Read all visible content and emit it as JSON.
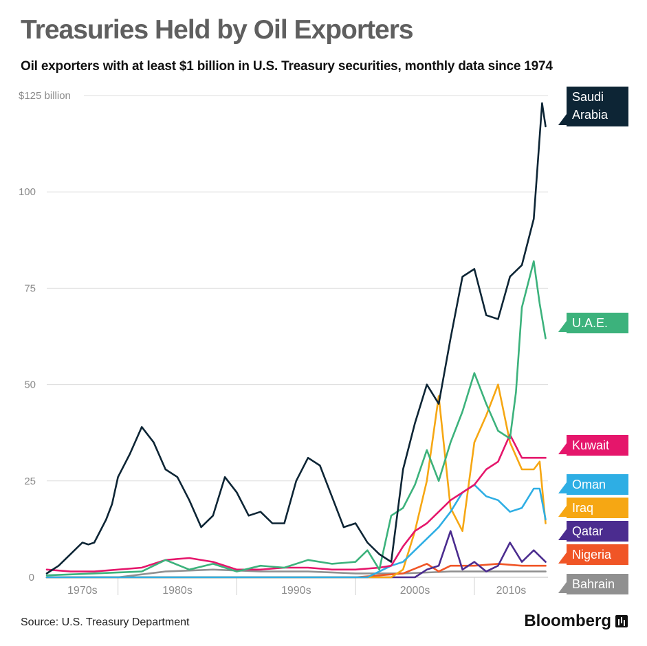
{
  "title": "Treasuries Held by Oil Exporters",
  "subtitle": "Oil exporters with at least $1 billion in U.S. Treasury securities,  monthly data since 1974",
  "source": "Source: U.S. Treasury Department",
  "brand": "Bloomberg",
  "chart_data": {
    "type": "line",
    "title": "Treasuries Held by Oil Exporters",
    "subtitle": "Oil exporters with at least $1 billion in U.S. Treasury securities,  monthly data since 1974",
    "x_range": [
      1974,
      2016.2
    ],
    "ylim": [
      0,
      125
    ],
    "y_ticks": [
      {
        "value": 0,
        "label": "0"
      },
      {
        "value": 25,
        "label": "25"
      },
      {
        "value": 50,
        "label": "50"
      },
      {
        "value": 75,
        "label": "75"
      },
      {
        "value": 100,
        "label": "100"
      },
      {
        "value": 125,
        "label": "$125 billion"
      }
    ],
    "x_decades": [
      {
        "label": "1970s",
        "start": 1974,
        "end": 1980
      },
      {
        "label": "1980s",
        "start": 1980,
        "end": 1990
      },
      {
        "label": "1990s",
        "start": 1990,
        "end": 2000
      },
      {
        "label": "2000s",
        "start": 2000,
        "end": 2010
      },
      {
        "label": "2010s",
        "start": 2010,
        "end": 2016.2
      }
    ],
    "grid": true,
    "legend": "right",
    "series": [
      {
        "name": "Saudi Arabia",
        "color": "#0d2535",
        "label_lines": [
          "Saudi",
          "Arabia"
        ],
        "x": [
          1974,
          1975,
          1976,
          1977,
          1977.5,
          1978,
          1979,
          1979.5,
          1980,
          1981,
          1982,
          1983,
          1984,
          1985,
          1986,
          1987,
          1988,
          1989,
          1990,
          1991,
          1992,
          1993,
          1994,
          1995,
          1996,
          1997,
          1998,
          1999,
          2000,
          2001,
          2002,
          2003,
          2004,
          2005,
          2006,
          2007,
          2008,
          2009,
          2010,
          2011,
          2012,
          2013,
          2014,
          2015,
          2015.7,
          2016
        ],
        "y": [
          1,
          3,
          6,
          9,
          8.5,
          9,
          15,
          19,
          26,
          32,
          39,
          35,
          28,
          26,
          20,
          13,
          16,
          26,
          22,
          16,
          17,
          14,
          14,
          25,
          31,
          29,
          21,
          13,
          14,
          9,
          6,
          4,
          28,
          40,
          50,
          45,
          62,
          78,
          80,
          68,
          67,
          78,
          81,
          93,
          123,
          117
        ]
      },
      {
        "name": "U.A.E.",
        "color": "#3cb27c",
        "label_lines": [
          "U.A.E."
        ],
        "x": [
          1974,
          1978,
          1982,
          1984,
          1986,
          1988,
          1990,
          1992,
          1994,
          1996,
          1998,
          2000,
          2001,
          2002,
          2003,
          2004,
          2005,
          2006,
          2007,
          2008,
          2009,
          2010,
          2011,
          2012,
          2013,
          2013.5,
          2014,
          2015,
          2015.5,
          2016
        ],
        "y": [
          0.5,
          1,
          1.5,
          4.5,
          2,
          3.5,
          1.5,
          3,
          2.5,
          4.5,
          3.5,
          4,
          7,
          2,
          16,
          18,
          24,
          33,
          25,
          35,
          43,
          53,
          45,
          38,
          36,
          48,
          70,
          82,
          71,
          62
        ]
      },
      {
        "name": "Kuwait",
        "color": "#e5166b",
        "label_lines": [
          "Kuwait"
        ],
        "x": [
          1974,
          1976,
          1978,
          1980,
          1982,
          1984,
          1986,
          1988,
          1990,
          1992,
          1994,
          1996,
          1998,
          2000,
          2002,
          2003,
          2004,
          2005,
          2006,
          2007,
          2008,
          2009,
          2010,
          2011,
          2012,
          2013,
          2014,
          2015,
          2016
        ],
        "y": [
          2,
          1.5,
          1.5,
          2,
          2.5,
          4.5,
          5,
          4,
          2,
          2,
          2.5,
          2.5,
          2,
          2,
          2.5,
          3,
          8,
          12,
          14,
          17,
          20,
          22,
          24,
          28,
          30,
          37,
          31,
          31,
          31
        ]
      },
      {
        "name": "Oman",
        "color": "#2eaee4",
        "label_lines": [
          "Oman"
        ],
        "x": [
          1974,
          2001,
          2002,
          2003,
          2004,
          2005,
          2006,
          2007,
          2008,
          2009,
          2010,
          2011,
          2012,
          2013,
          2014,
          2015,
          2015.5,
          2016
        ],
        "y": [
          0,
          0,
          1.5,
          3,
          4,
          7,
          10,
          13,
          17,
          22,
          24,
          21,
          20,
          17,
          18,
          23,
          23,
          15
        ]
      },
      {
        "name": "Iraq",
        "color": "#f6a713",
        "label_lines": [
          "Iraq"
        ],
        "x": [
          1974,
          2003,
          2004,
          2005,
          2006,
          2007,
          2008,
          2009,
          2010,
          2011,
          2012,
          2013,
          2014,
          2015,
          2015.5,
          2016
        ],
        "y": [
          0,
          0,
          2,
          12,
          25,
          47,
          18,
          12,
          35,
          42,
          50,
          35,
          28,
          28,
          30,
          14
        ]
      },
      {
        "name": "Qatar",
        "color": "#4b2c8f",
        "label_lines": [
          "Qatar"
        ],
        "x": [
          1974,
          2005,
          2006,
          2007,
          2008,
          2009,
          2010,
          2011,
          2012,
          2013,
          2014,
          2015,
          2016
        ],
        "y": [
          0,
          0,
          2,
          3,
          12,
          2,
          4,
          1.5,
          3,
          9,
          4,
          7,
          4
        ]
      },
      {
        "name": "Nigeria",
        "color": "#f05526",
        "label_lines": [
          "Nigeria"
        ],
        "x": [
          1974,
          1990,
          2000,
          2004,
          2006,
          2007,
          2008,
          2010,
          2012,
          2014,
          2016
        ],
        "y": [
          0,
          0,
          0,
          1,
          3.5,
          1.5,
          3,
          3,
          3.5,
          3,
          3
        ]
      },
      {
        "name": "Bahrain",
        "color": "#909090",
        "label_lines": [
          "Bahrain"
        ],
        "x": [
          1974,
          1980,
          1984,
          1988,
          1992,
          1996,
          2000,
          2004,
          2008,
          2012,
          2016
        ],
        "y": [
          0,
          0,
          1.5,
          2,
          1.5,
          1.5,
          1,
          1,
          1.5,
          1.5,
          1.5
        ]
      }
    ]
  }
}
